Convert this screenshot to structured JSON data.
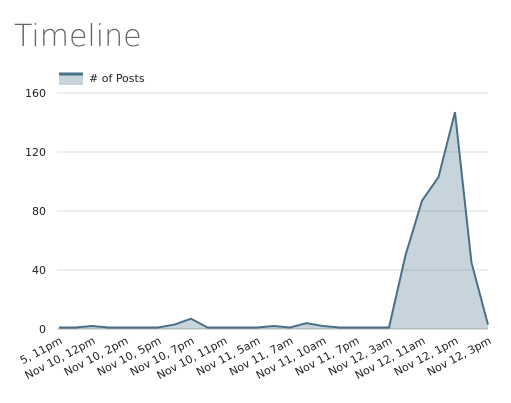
{
  "chart_data": {
    "type": "area",
    "title": "Timeline",
    "categories": [
      "5, 11pm",
      null,
      "Nov 10, 12pm",
      null,
      "Nov 10, 2pm",
      null,
      "Nov 10, 5pm",
      null,
      "Nov 10, 7pm",
      null,
      "Nov 10, 11pm",
      null,
      "Nov 11, 5am",
      null,
      "Nov 11, 7am",
      null,
      "Nov 11, 10am",
      null,
      "Nov 11, 7pm",
      null,
      "Nov 12, 3am",
      null,
      "Nov 12, 11am",
      null,
      "Nov 12, 1pm",
      null,
      "Nov 12, 3pm"
    ],
    "series": [
      {
        "name": "# of Posts",
        "color": "#4a7089",
        "values": [
          1,
          1,
          2,
          1,
          1,
          1,
          1,
          3,
          7,
          1,
          1,
          1,
          1,
          2,
          1,
          4,
          2,
          1,
          1,
          1,
          1,
          50,
          87,
          103,
          147,
          45,
          3
        ]
      }
    ],
    "ylim": [
      0,
      160
    ],
    "yticks": [
      0,
      40,
      80,
      120,
      160
    ],
    "grid": true,
    "legend": "top-left"
  }
}
